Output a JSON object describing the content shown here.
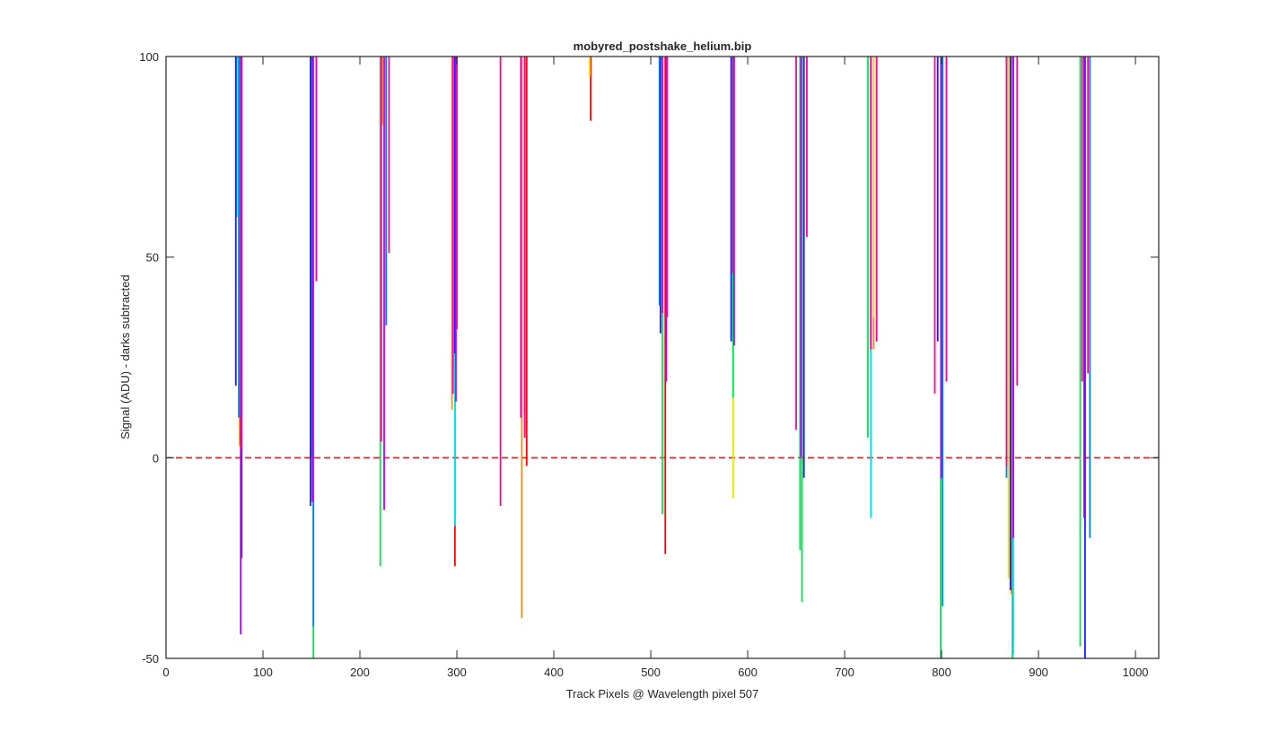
{
  "chart_data": {
    "type": "line",
    "title": "mobyred_postshake_helium.bip",
    "xlabel": "Track Pixels @ Wavelength pixel 507",
    "ylabel": "Signal (ADU) - darks subtracted",
    "xlim": [
      0,
      1024
    ],
    "ylim": [
      -50,
      100
    ],
    "xticks": [
      0,
      100,
      200,
      300,
      400,
      500,
      600,
      700,
      800,
      900,
      1000
    ],
    "yticks": [
      -50,
      0,
      50,
      100
    ],
    "grid": false,
    "legend": "none",
    "reference_line": {
      "y": 0,
      "color": "#d62728",
      "style": "dashed"
    },
    "series": [
      {
        "color": "#ff0000",
        "segments": [
          [
            438,
            84,
            100
          ],
          [
            298,
            -27,
            100
          ],
          [
            372,
            -2,
            100
          ],
          [
            515,
            -24,
            100
          ]
        ]
      },
      {
        "color": "#ff8c00",
        "segments": [
          [
            367,
            -40,
            100
          ],
          [
            76,
            3,
            100
          ],
          [
            295,
            12,
            100
          ],
          [
            872,
            -34,
            100
          ],
          [
            730,
            27,
            100
          ],
          [
            223,
            83,
            100
          ],
          [
            78,
            55,
            100
          ]
        ]
      },
      {
        "color": "#e6e600",
        "segments": [
          [
            437,
            95,
            100
          ],
          [
            585,
            -10,
            100
          ],
          [
            78,
            40,
            100
          ],
          [
            297,
            22,
            100
          ],
          [
            730,
            35,
            100
          ],
          [
            869,
            -30,
            100
          ]
        ]
      },
      {
        "color": "#00e64d",
        "segments": [
          [
            152,
            -50,
            100
          ],
          [
            221,
            -27,
            100
          ],
          [
            512,
            -14,
            100
          ],
          [
            656,
            -36,
            100
          ],
          [
            724,
            5,
            100
          ],
          [
            799,
            -50,
            100
          ],
          [
            943,
            -47,
            100
          ],
          [
            654,
            -23,
            100
          ],
          [
            585,
            15,
            100
          ],
          [
            873,
            -50,
            100
          ],
          [
            298,
            16,
            100
          ]
        ]
      },
      {
        "color": "#00e6e6",
        "segments": [
          [
            298,
            -17,
            100
          ],
          [
            727,
            -15,
            100
          ],
          [
            874,
            -49,
            100
          ],
          [
            150,
            0,
            100
          ],
          [
            583,
            30,
            100
          ],
          [
            73,
            60,
            100
          ]
        ]
      },
      {
        "color": "#0080ff",
        "segments": [
          [
            152,
            -42,
            100
          ],
          [
            867,
            -5,
            100
          ],
          [
            801,
            -37,
            100
          ],
          [
            227,
            33,
            100
          ],
          [
            953,
            -20,
            100
          ],
          [
            509,
            38,
            100
          ],
          [
            75,
            10,
            100
          ]
        ]
      },
      {
        "color": "#1a1aff",
        "segments": [
          [
            948,
            -50,
            100
          ],
          [
            72,
            18,
            100
          ],
          [
            78,
            -25,
            100
          ],
          [
            658,
            -5,
            100
          ],
          [
            149,
            -12,
            100
          ],
          [
            510,
            31,
            100
          ],
          [
            871,
            -33,
            100
          ],
          [
            298,
            26,
            100
          ],
          [
            583,
            29,
            100
          ],
          [
            796,
            29,
            100
          ]
        ]
      },
      {
        "color": "#b300ff",
        "segments": [
          [
            77,
            -44,
            100
          ],
          [
            225,
            -13,
            100
          ],
          [
            151,
            -11,
            100
          ],
          [
            299,
            14,
            100
          ],
          [
            516,
            19,
            100
          ],
          [
            947,
            -15,
            100
          ],
          [
            370,
            11,
            100
          ],
          [
            655,
            0,
            100
          ],
          [
            874,
            -20,
            100
          ],
          [
            800,
            -5,
            100
          ],
          [
            586,
            28,
            100
          ]
        ]
      },
      {
        "color": "#ff0099",
        "segments": [
          [
            345,
            -12,
            100
          ],
          [
            370,
            5,
            100
          ],
          [
            78,
            2,
            100
          ],
          [
            222,
            4,
            100
          ],
          [
            296,
            16,
            100
          ],
          [
            366,
            10,
            100
          ],
          [
            512,
            36,
            100
          ],
          [
            584,
            46,
            100
          ],
          [
            650,
            7,
            100
          ],
          [
            727,
            27,
            100
          ],
          [
            793,
            16,
            100
          ],
          [
            867,
            -2,
            100
          ],
          [
            945,
            19,
            100
          ],
          [
            951,
            21,
            100
          ],
          [
            878,
            18,
            100
          ],
          [
            805,
            19,
            100
          ],
          [
            733,
            29,
            100
          ],
          [
            661,
            55,
            100
          ],
          [
            517,
            35,
            100
          ],
          [
            300,
            32,
            100
          ],
          [
            230,
            51,
            100
          ],
          [
            155,
            44,
            100
          ]
        ]
      }
    ]
  }
}
